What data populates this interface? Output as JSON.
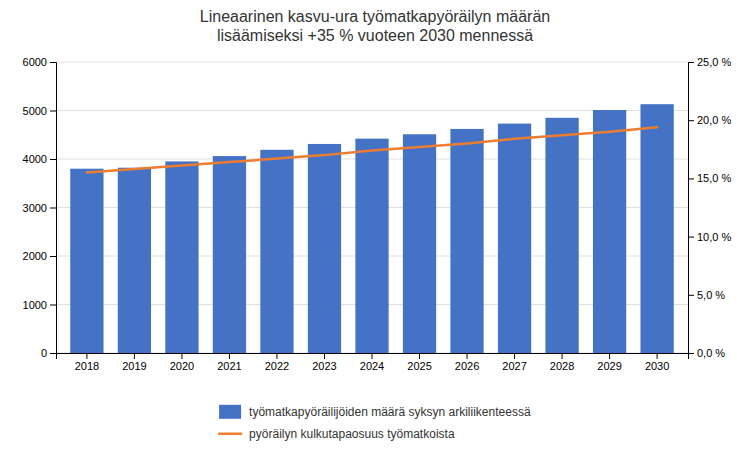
{
  "chart_data": {
    "type": "bar",
    "title": "Lineaarinen kasvu-ura työmatkapyöräilyn määrän\nlisäämiseksi +35 % vuoteen 2030 mennessä",
    "categories": [
      "2018",
      "2019",
      "2020",
      "2021",
      "2022",
      "2023",
      "2024",
      "2025",
      "2026",
      "2027",
      "2028",
      "2029",
      "2030"
    ],
    "series": [
      {
        "name": "työmatkapyöräilijöiden määrä syksyn arkiliikenteessä",
        "type": "bar",
        "color": "#4472C4",
        "values": [
          3800,
          3820,
          3950,
          4060,
          4190,
          4310,
          4420,
          4510,
          4620,
          4730,
          4850,
          5010,
          5130
        ]
      },
      {
        "name": "pyöräilyn kulkutapaosuus työmatkoista",
        "type": "line",
        "color": "#ED7D31",
        "axis": "y2",
        "values": [
          0.155,
          0.158,
          0.161,
          0.164,
          0.167,
          0.17,
          0.174,
          0.177,
          0.18,
          0.184,
          0.187,
          0.19,
          0.194
        ]
      }
    ],
    "ylim": [
      0,
      6000
    ],
    "yticks": [
      0,
      1000,
      2000,
      3000,
      4000,
      5000,
      6000
    ],
    "y2lim": [
      0.0,
      0.25
    ],
    "y2ticks": [
      {
        "value": 0.0,
        "label": "0,0 %"
      },
      {
        "value": 0.05,
        "label": "5,0 %"
      },
      {
        "value": 0.1,
        "label": "10,0 %"
      },
      {
        "value": 0.15,
        "label": "15,0 %"
      },
      {
        "value": 0.2,
        "label": "20,0 %"
      },
      {
        "value": 0.25,
        "label": "25,0 %"
      }
    ],
    "grid": true,
    "legend": "bottom"
  }
}
